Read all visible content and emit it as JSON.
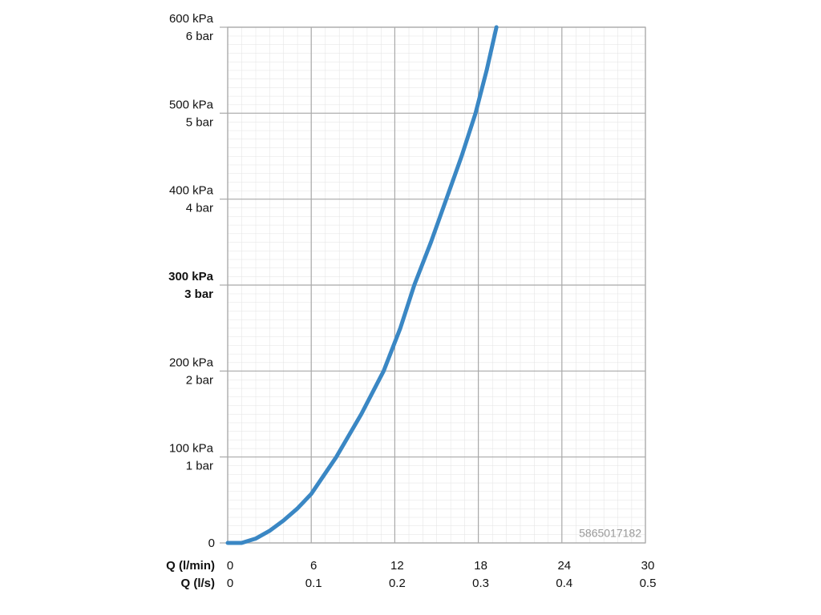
{
  "chart_data": {
    "type": "line",
    "xlabel": "Q (l/min)",
    "x2label": "Q (l/s)",
    "x": [
      0,
      1,
      2,
      3,
      4,
      5,
      6,
      7.8,
      9.6,
      11.2,
      12.4,
      13.4,
      14.6,
      15.7,
      16.8,
      17.8,
      18.6,
      19.3
    ],
    "series": [
      {
        "color": "#3a87c4",
        "values": [
          0,
          0,
          5,
          14,
          26,
          40,
          57,
          100,
          150,
          200,
          250,
          300,
          350,
          400,
          450,
          500,
          550,
          600
        ]
      }
    ],
    "xlim": [
      0,
      30
    ],
    "xticks": [
      0,
      6,
      12,
      18,
      24,
      30
    ],
    "x2lim": [
      0,
      0.5
    ],
    "x2ticks": [
      0,
      0.1,
      0.2,
      0.3,
      0.4,
      0.5
    ],
    "ylim": [
      0,
      600
    ],
    "yticks": [
      0,
      {
        "value": 100,
        "label": "100 kPa"
      },
      {
        "value": 200,
        "label": "200 kPa"
      },
      {
        "value": 300,
        "label": "300 kPa"
      },
      {
        "value": 400,
        "label": "400 kPa"
      },
      {
        "value": 500,
        "label": "500 kPa"
      },
      {
        "value": 600,
        "label": "600 kPa"
      }
    ],
    "ytick_bar_labels": [
      null,
      "1 bar",
      "2 bar",
      "3 bar",
      "4 bar",
      "5 bar",
      "6 bar"
    ],
    "highlight_ytick": 300,
    "grid": true,
    "annotation": "5865017182"
  }
}
